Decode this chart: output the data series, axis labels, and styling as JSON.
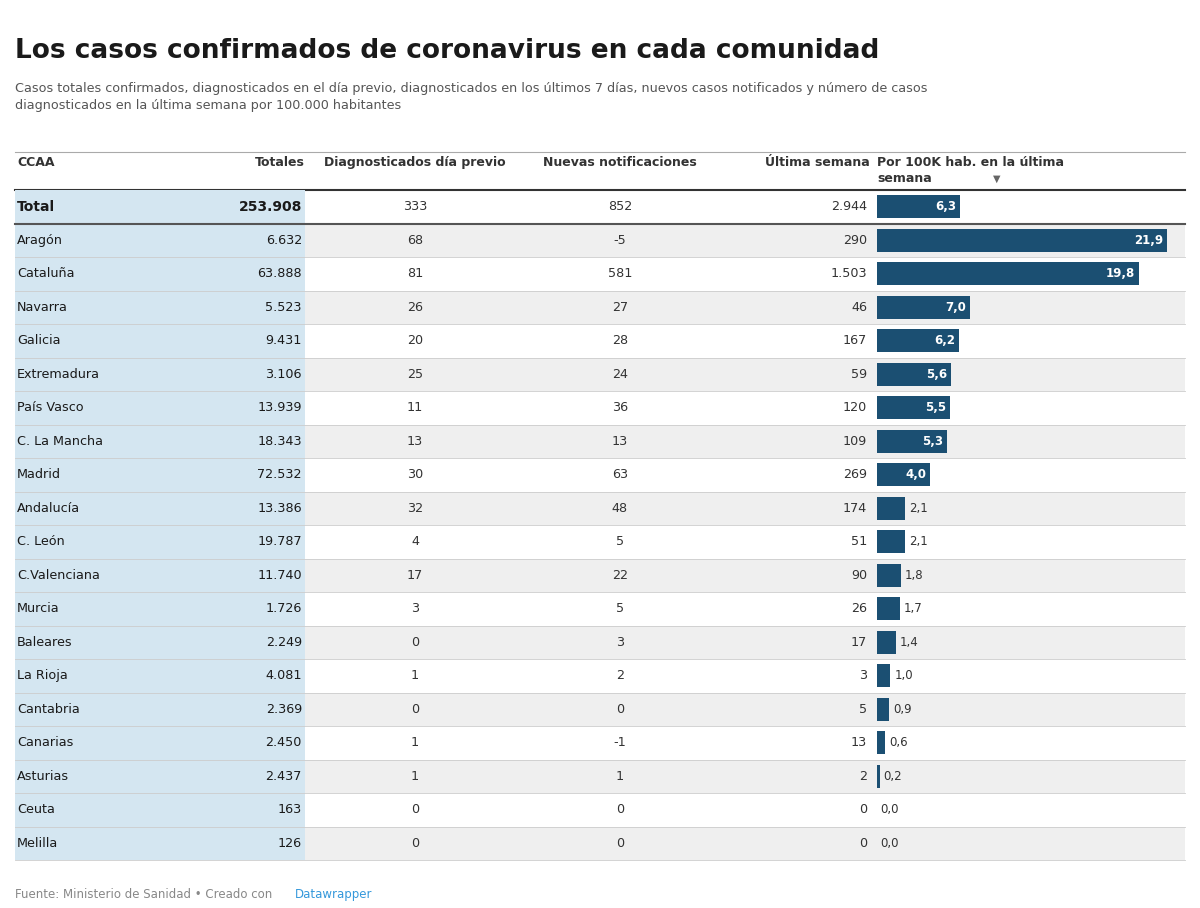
{
  "title": "Los casos confirmados de coronavirus en cada comunidad",
  "subtitle": "Casos totales confirmados, diagnosticados en el día previo, diagnosticados en los últimos 7 días, nuevos casos notificados y número de casos\ndiagnosticados en la última semana por 100.000 habitantes",
  "col_headers": [
    "CCAA",
    "Totales",
    "Diagnosticados día previo",
    "Nuevas notificaciones",
    "Última semana",
    "Por 100K hab. en la última\nsemana"
  ],
  "rows": [
    [
      "Total",
      "253.908",
      "333",
      "852",
      "2.944",
      6.3
    ],
    [
      "Aragón",
      "6.632",
      "68",
      "-5",
      "290",
      21.9
    ],
    [
      "Cataluña",
      "63.888",
      "81",
      "581",
      "1.503",
      19.8
    ],
    [
      "Navarra",
      "5.523",
      "26",
      "27",
      "46",
      7.0
    ],
    [
      "Galicia",
      "9.431",
      "20",
      "28",
      "167",
      6.2
    ],
    [
      "Extremadura",
      "3.106",
      "25",
      "24",
      "59",
      5.6
    ],
    [
      "País Vasco",
      "13.939",
      "11",
      "36",
      "120",
      5.5
    ],
    [
      "C. La Mancha",
      "18.343",
      "13",
      "13",
      "109",
      5.3
    ],
    [
      "Madrid",
      "72.532",
      "30",
      "63",
      "269",
      4.0
    ],
    [
      "Andalucía",
      "13.386",
      "32",
      "48",
      "174",
      2.1
    ],
    [
      "C. León",
      "19.787",
      "4",
      "5",
      "51",
      2.1
    ],
    [
      "C.Valenciana",
      "11.740",
      "17",
      "22",
      "90",
      1.8
    ],
    [
      "Murcia",
      "1.726",
      "3",
      "5",
      "26",
      1.7
    ],
    [
      "Baleares",
      "2.249",
      "0",
      "3",
      "17",
      1.4
    ],
    [
      "La Rioja",
      "4.081",
      "1",
      "2",
      "3",
      1.0
    ],
    [
      "Cantabria",
      "2.369",
      "0",
      "0",
      "5",
      0.9
    ],
    [
      "Canarias",
      "2.450",
      "1",
      "-1",
      "13",
      0.6
    ],
    [
      "Asturias",
      "2.437",
      "1",
      "1",
      "2",
      0.2
    ],
    [
      "Ceuta",
      "163",
      "0",
      "0",
      "0",
      0.0
    ],
    [
      "Melilla",
      "126",
      "0",
      "0",
      "0",
      0.0
    ]
  ],
  "bar_max": 21.9,
  "bar_color": "#1b4f72",
  "col_bg_light": "#d4e6f1",
  "row_bg_alt": "#efefef",
  "row_bg_white": "#ffffff",
  "footer_text": "Fuente: Ministerio de Sanidad • Creado con ",
  "footer_link": "Datawrapper",
  "footer_color": "#888888",
  "footer_link_color": "#3498db"
}
